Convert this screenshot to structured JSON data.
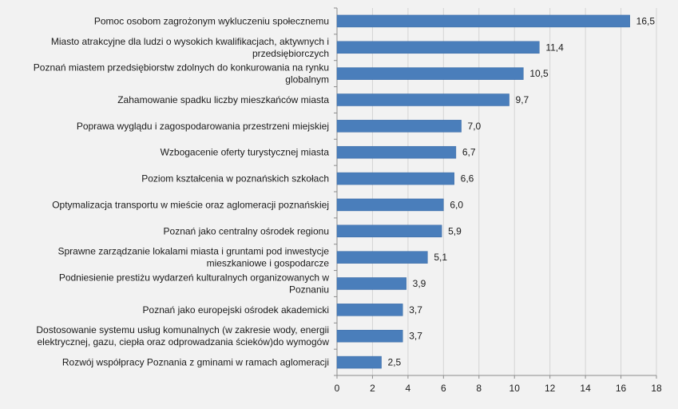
{
  "chart_data": {
    "type": "bar",
    "orientation": "horizontal",
    "title": "",
    "xlabel": "",
    "ylabel": "",
    "xlim": [
      0,
      18
    ],
    "x_ticks": [
      "0",
      "2",
      "4",
      "6",
      "8",
      "10",
      "12",
      "14",
      "16",
      "18"
    ],
    "grid": true,
    "bar_color": "#4a7ebb",
    "categories": [
      [
        "Pomoc osobom zagrożonym wykluczeniu społecznemu"
      ],
      [
        "Miasto atrakcyjne dla ludzi o wysokich kwalifikacjach, aktywnych i",
        "przedsiębiorczych"
      ],
      [
        "Poznań miastem przedsiębiorstw zdolnych do konkurowania na rynku",
        "globalnym"
      ],
      [
        "Zahamowanie spadku liczby mieszkańców miasta"
      ],
      [
        "Poprawa wyglądu i zagospodarowania przestrzeni miejskiej"
      ],
      [
        "Wzbogacenie oferty turystycznej miasta"
      ],
      [
        "Poziom kształcenia w poznańskich szkołach"
      ],
      [
        "Optymalizacja transportu w mieście oraz aglomeracji poznańskiej"
      ],
      [
        "Poznań jako centralny ośrodek regionu"
      ],
      [
        "Sprawne zarządzanie lokalami miasta i gruntami pod inwestycje",
        "mieszkaniowe i gospodarcze"
      ],
      [
        "Podniesienie prestiżu wydarzeń kulturalnych organizowanych w",
        "Poznaniu"
      ],
      [
        "Poznań jako europejski ośrodek akademicki"
      ],
      [
        "Dostosowanie systemu usług komunalnych (w zakresie wody, energii",
        "elektrycznej, gazu, ciepła oraz odprowadzania ścieków)do wymogów"
      ],
      [
        "Rozwój współpracy Poznania z gminami w ramach aglomeracji"
      ]
    ],
    "values": [
      16.5,
      11.4,
      10.5,
      9.7,
      7.0,
      6.7,
      6.6,
      6.0,
      5.9,
      5.1,
      3.9,
      3.7,
      3.7,
      2.5
    ],
    "value_labels": [
      "16,5",
      "11,4",
      "10,5",
      "9,7",
      "7,0",
      "6,7",
      "6,6",
      "6,0",
      "5,9",
      "5,1",
      "3,9",
      "3,7",
      "3,7",
      "2,5"
    ]
  }
}
